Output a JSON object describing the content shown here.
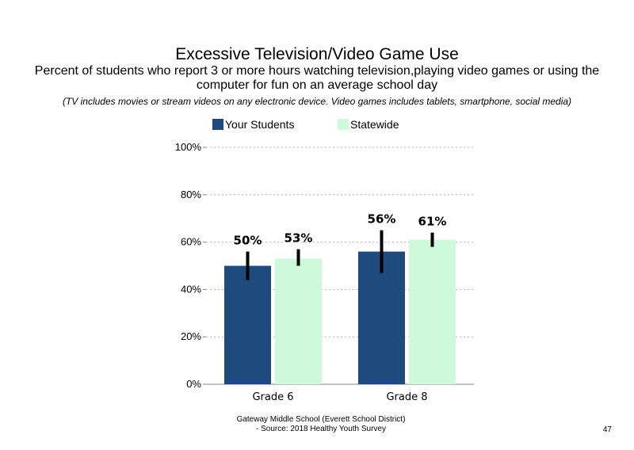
{
  "title": "Excessive Television/Video Game Use",
  "subtitle": "Percent of students  who report 3 or more hours watching television,playing video games or using the computer for fun on an average school day",
  "note": "(TV includes movies or stream videos on any electronic device. Video games includes tablets, smartphone, social media)",
  "footer": {
    "line1": "Gateway Middle School (Everett School District)",
    "line2": "- Source: 2018 Healthy  Youth Survey"
  },
  "page_number": "47",
  "colors": {
    "your_students": "#1f4a7d",
    "statewide": "#ccfadb",
    "error_bar": "#000000",
    "grid": "#b0b0b0"
  },
  "chart_data": {
    "type": "bar",
    "categories": [
      "Grade 6",
      "Grade 8"
    ],
    "ylim": [
      0,
      100
    ],
    "yticks": [
      0,
      20,
      40,
      60,
      80,
      100
    ],
    "ytick_labels": [
      "0%",
      "20%",
      "40%",
      "60%",
      "80%",
      "100%"
    ],
    "grid": true,
    "legend_position": "top",
    "series": [
      {
        "name": "Your Students",
        "values": [
          50,
          56
        ],
        "labels": [
          "50%",
          "56%"
        ],
        "error_low": [
          44,
          47
        ],
        "error_high": [
          56,
          65
        ]
      },
      {
        "name": "Statewide",
        "values": [
          53,
          61
        ],
        "labels": [
          "53%",
          "61%"
        ],
        "error_low": [
          50,
          58
        ],
        "error_high": [
          57,
          64
        ]
      }
    ]
  }
}
